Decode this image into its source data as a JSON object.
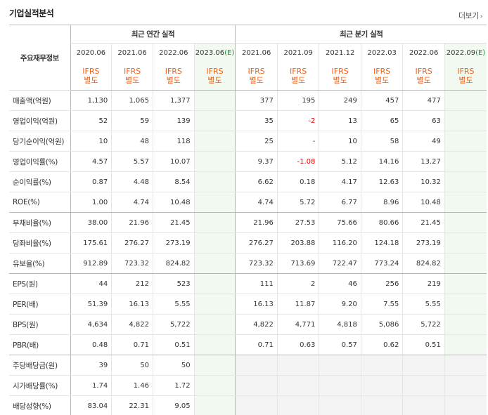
{
  "title": "기업실적분석",
  "more_link": "더보기",
  "group_headers": {
    "row_head": "주요재무정보",
    "annual": "최근 연간 실적",
    "quarter": "최근 분기 실적"
  },
  "periods": {
    "annual": [
      "2020.06",
      "2021.06",
      "2022.06",
      "2023.06(E)"
    ],
    "quarter": [
      "2021.06",
      "2021.09",
      "2021.12",
      "2022.03",
      "2022.06",
      "2022.09(E)"
    ]
  },
  "ifrs_line1": "IFRS",
  "ifrs_line2": "별도",
  "rows": [
    {
      "label": "매출액(억원)",
      "annual": [
        "1,130",
        "1,065",
        "1,377",
        ""
      ],
      "quarter": [
        "377",
        "195",
        "249",
        "457",
        "477",
        ""
      ]
    },
    {
      "label": "영업이익(억원)",
      "annual": [
        "52",
        "59",
        "139",
        ""
      ],
      "quarter": [
        "35",
        "-2",
        "13",
        "65",
        "63",
        ""
      ]
    },
    {
      "label": "당기순이익(억원)",
      "annual": [
        "10",
        "48",
        "118",
        ""
      ],
      "quarter": [
        "25",
        "-",
        "10",
        "58",
        "49",
        ""
      ]
    },
    {
      "label": "영업이익률(%)",
      "annual": [
        "4.57",
        "5.57",
        "10.07",
        ""
      ],
      "quarter": [
        "9.37",
        "-1.08",
        "5.12",
        "14.16",
        "13.27",
        ""
      ]
    },
    {
      "label": "순이익률(%)",
      "annual": [
        "0.87",
        "4.48",
        "8.54",
        ""
      ],
      "quarter": [
        "6.62",
        "0.18",
        "4.17",
        "12.63",
        "10.32",
        ""
      ]
    },
    {
      "label": "ROE(%)",
      "annual": [
        "1.00",
        "4.74",
        "10.48",
        ""
      ],
      "quarter": [
        "4.74",
        "5.72",
        "6.77",
        "8.96",
        "10.48",
        ""
      ]
    },
    {
      "label": "부채비율(%)",
      "annual": [
        "38.00",
        "21.96",
        "21.45",
        ""
      ],
      "quarter": [
        "21.96",
        "27.53",
        "75.66",
        "80.66",
        "21.45",
        ""
      ]
    },
    {
      "label": "당좌비율(%)",
      "annual": [
        "175.61",
        "276.27",
        "273.19",
        ""
      ],
      "quarter": [
        "276.27",
        "203.88",
        "116.20",
        "124.18",
        "273.19",
        ""
      ]
    },
    {
      "label": "유보율(%)",
      "annual": [
        "912.89",
        "723.32",
        "824.82",
        ""
      ],
      "quarter": [
        "723.32",
        "713.69",
        "722.47",
        "773.24",
        "824.82",
        ""
      ]
    },
    {
      "label": "EPS(원)",
      "annual": [
        "44",
        "212",
        "523",
        ""
      ],
      "quarter": [
        "111",
        "2",
        "46",
        "256",
        "219",
        ""
      ]
    },
    {
      "label": "PER(배)",
      "annual": [
        "51.39",
        "16.13",
        "5.55",
        ""
      ],
      "quarter": [
        "16.13",
        "11.87",
        "9.20",
        "7.55",
        "5.55",
        ""
      ]
    },
    {
      "label": "BPS(원)",
      "annual": [
        "4,634",
        "4,822",
        "5,722",
        ""
      ],
      "quarter": [
        "4,822",
        "4,771",
        "4,818",
        "5,086",
        "5,722",
        ""
      ]
    },
    {
      "label": "PBR(배)",
      "annual": [
        "0.48",
        "0.71",
        "0.51",
        ""
      ],
      "quarter": [
        "0.71",
        "0.63",
        "0.57",
        "0.62",
        "0.51",
        ""
      ]
    },
    {
      "label": "주당배당금(원)",
      "annual": [
        "39",
        "50",
        "50",
        ""
      ],
      "quarter": [
        "",
        "",
        "",
        "",
        "",
        ""
      ]
    },
    {
      "label": "시가배당률(%)",
      "annual": [
        "1.74",
        "1.46",
        "1.72",
        ""
      ],
      "quarter": [
        "",
        "",
        "",
        "",
        "",
        ""
      ]
    },
    {
      "label": "배당성향(%)",
      "annual": [
        "83.04",
        "22.31",
        "9.05",
        ""
      ],
      "quarter": [
        "",
        "",
        "",
        "",
        "",
        ""
      ]
    }
  ],
  "colors": {
    "ifrs": "#f06318",
    "negative": "#e00000",
    "estimate_bg": "#f2f9f0",
    "estimate_e": "#2a8d3a"
  }
}
